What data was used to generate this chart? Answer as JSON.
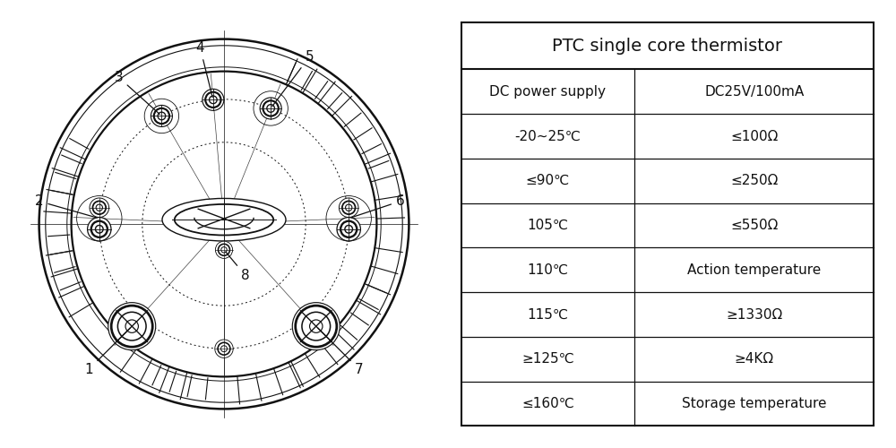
{
  "title": "PTC single core thermistor",
  "table_rows": [
    [
      "DC power supply",
      "DC25V/100mA"
    ],
    [
      "-20~25℃",
      "≤100Ω"
    ],
    [
      "≤90℃",
      "≤250Ω"
    ],
    [
      "105℃",
      "≤550Ω"
    ],
    [
      "110℃",
      "Action temperature"
    ],
    [
      "115℃",
      "≥1330Ω"
    ],
    [
      "≥125℃",
      "≥4KΩ"
    ],
    [
      "≤160℃",
      "Storage temperature"
    ]
  ],
  "bg_color": "#ffffff",
  "line_color": "#111111"
}
